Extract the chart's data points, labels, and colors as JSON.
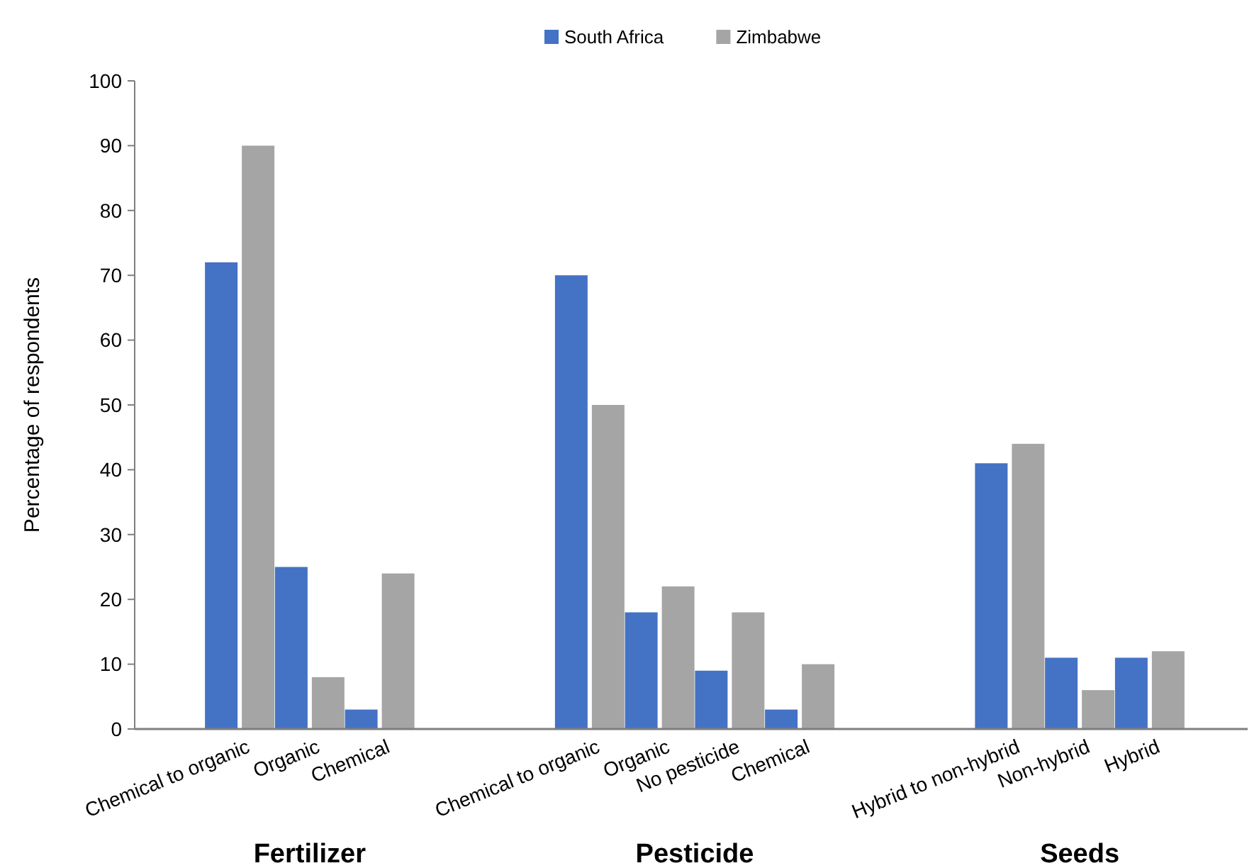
{
  "chart_data": {
    "type": "bar",
    "ylabel": "Percentage of respondents",
    "categories": [
      null,
      "Chemical to organic",
      "Organic",
      "Chemical",
      null,
      null,
      "Chemical to organic",
      "Organic",
      "No pesticide",
      "Chemical",
      null,
      null,
      "Hybrid to non-hybrid",
      "Non-hybrid",
      "Hybrid",
      null
    ],
    "series": [
      {
        "name": "South Africa",
        "color": "#4472c4",
        "values": [
          null,
          72,
          25,
          3,
          null,
          null,
          70,
          18,
          9,
          3,
          null,
          null,
          41,
          11,
          11,
          null
        ]
      },
      {
        "name": "Zimbabwe",
        "color": "#a5a5a5",
        "values": [
          null,
          90,
          8,
          24,
          null,
          null,
          50,
          22,
          18,
          10,
          null,
          null,
          44,
          6,
          12,
          null
        ]
      }
    ],
    "ylim": [
      0,
      100
    ],
    "yticks": [
      0,
      10,
      20,
      30,
      40,
      50,
      60,
      70,
      80,
      90,
      100
    ],
    "grid": false,
    "legend": "top",
    "annotations": [
      "Fertilizer",
      "Pesticide",
      "Seeds"
    ]
  }
}
